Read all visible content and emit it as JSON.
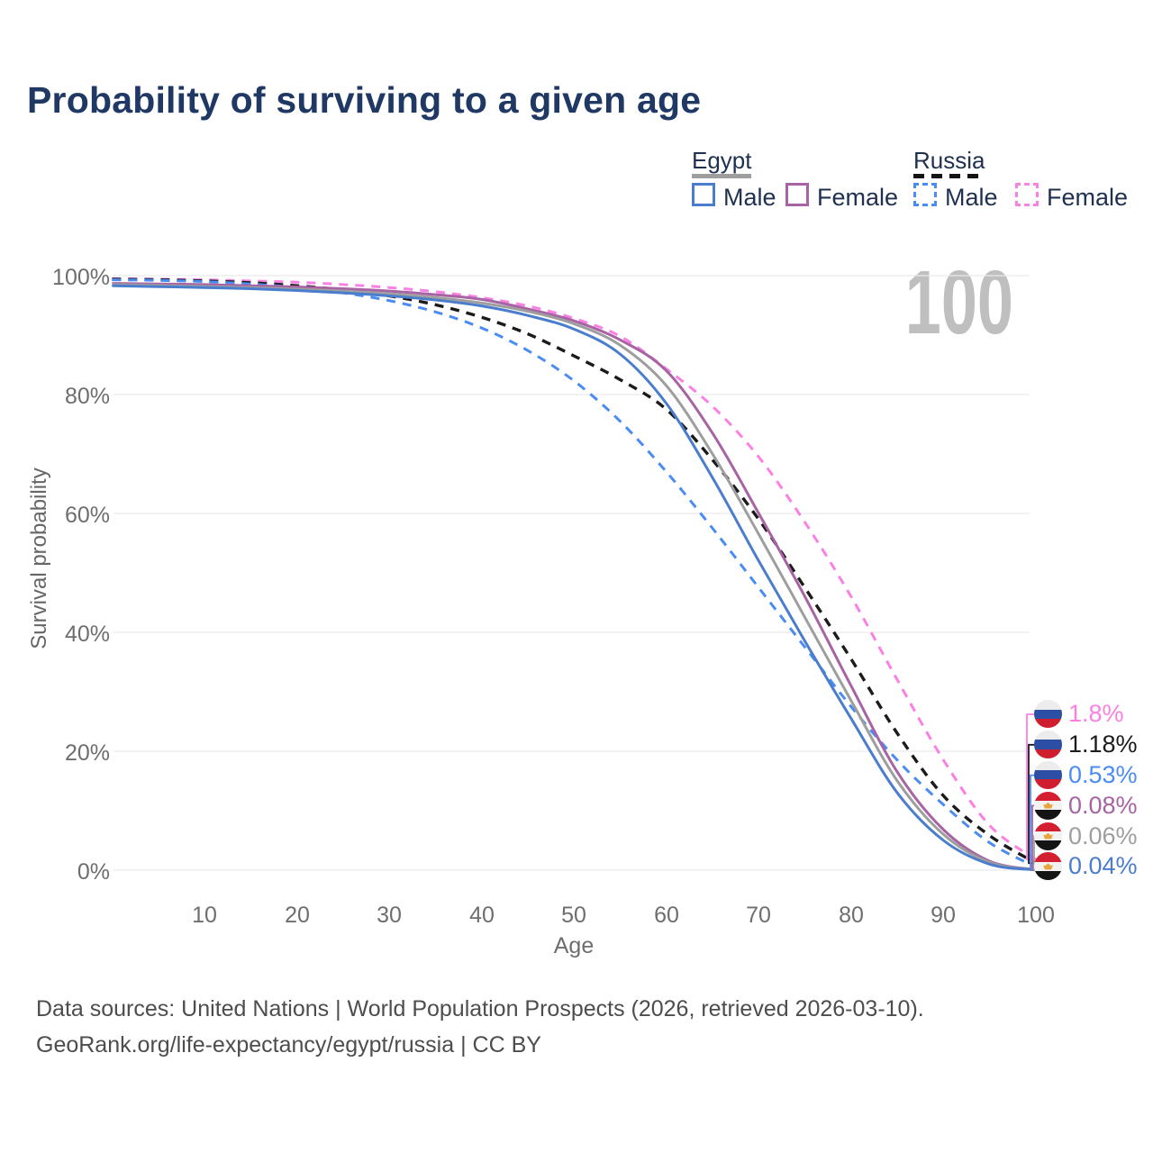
{
  "title": "Probability of surviving to a given age",
  "watermark": "100",
  "legend": {
    "egypt": {
      "label": "Egypt",
      "male": "Male",
      "female": "Female"
    },
    "russia": {
      "label": "Russia",
      "male": "Male",
      "female": "Female"
    }
  },
  "axes": {
    "x_label": "Age",
    "y_label": "Survival probability"
  },
  "footer": {
    "line1": "Data sources: United Nations | World Population Prospects (2026, retrieved 2026-03-10).",
    "line2": "GeoRank.org/life-expectancy/egypt/russia | CC BY"
  },
  "chart_data": {
    "type": "line",
    "title": "Probability of surviving to a given age",
    "xlabel": "Age",
    "ylabel": "Survival probability",
    "xlim": [
      0,
      100
    ],
    "ylim": [
      0,
      100
    ],
    "grid": true,
    "legend_position": "top-right",
    "x": [
      0,
      5,
      10,
      15,
      20,
      25,
      30,
      35,
      40,
      45,
      50,
      55,
      60,
      65,
      70,
      75,
      80,
      85,
      90,
      95,
      100
    ],
    "x_tick_labels": [
      "10",
      "20",
      "30",
      "40",
      "50",
      "60",
      "70",
      "80",
      "90",
      "100"
    ],
    "y_tick_labels": [
      "100%",
      "80%",
      "60%",
      "40%",
      "20%",
      "0%"
    ],
    "y_gridlines": [
      0,
      20,
      40,
      60,
      80,
      100
    ],
    "series": [
      {
        "id": "russia-female",
        "name": "Russia Female",
        "country": "Russia",
        "sex": "Female",
        "dashed": true,
        "color": "#fb80e4",
        "end_label": "1.8%",
        "values": [
          99.5,
          99.4,
          99.3,
          99.1,
          98.9,
          98.5,
          98.0,
          97.3,
          96.3,
          94.9,
          92.8,
          89.8,
          84.3,
          78.0,
          69.5,
          58.5,
          46.0,
          32.0,
          18.5,
          7.5,
          1.8
        ]
      },
      {
        "id": "russia-both",
        "name": "Russia Both sexes",
        "country": "Russia",
        "sex": "Both",
        "dashed": true,
        "color": "#1b1b1b",
        "end_label": "1.18%",
        "values": [
          99.4,
          99.3,
          99.1,
          98.8,
          98.3,
          97.6,
          96.6,
          95.1,
          93.0,
          90.2,
          86.5,
          82.5,
          77.5,
          69.0,
          59.0,
          47.5,
          35.5,
          23.0,
          12.5,
          5.8,
          1.18
        ]
      },
      {
        "id": "russia-male",
        "name": "Russia Male",
        "country": "Russia",
        "sex": "Male",
        "dashed": true,
        "color": "#4a8cf2",
        "end_label": "0.53%",
        "values": [
          99.3,
          99.2,
          99.0,
          98.6,
          98.0,
          97.1,
          95.8,
          93.9,
          91.2,
          87.4,
          82.3,
          75.5,
          67.0,
          57.5,
          47.5,
          37.5,
          27.5,
          18.5,
          11.0,
          4.6,
          0.53
        ]
      },
      {
        "id": "egypt-female",
        "name": "Egypt Female",
        "country": "Egypt",
        "sex": "Female",
        "dashed": false,
        "color": "#a863a4",
        "end_label": "0.08%",
        "values": [
          98.7,
          98.6,
          98.5,
          98.3,
          98.1,
          97.8,
          97.4,
          96.8,
          96.0,
          94.4,
          92.4,
          89.2,
          84.0,
          73.5,
          60.0,
          46.0,
          31.0,
          16.5,
          6.8,
          1.5,
          0.08
        ]
      },
      {
        "id": "egypt-both",
        "name": "Egypt Both sexes",
        "country": "Egypt",
        "sex": "Both",
        "dashed": false,
        "color": "#9e9e9e",
        "end_label": "0.06%",
        "values": [
          98.5,
          98.35,
          98.2,
          98.0,
          97.75,
          97.4,
          96.95,
          96.3,
          95.4,
          94.0,
          91.9,
          88.3,
          81.5,
          70.0,
          56.5,
          42.5,
          28.5,
          15.0,
          6.0,
          1.3,
          0.06
        ]
      },
      {
        "id": "egypt-male",
        "name": "Egypt Male",
        "country": "Egypt",
        "sex": "Male",
        "dashed": false,
        "color": "#4a7dcd",
        "end_label": "0.04%",
        "values": [
          98.3,
          98.15,
          98.0,
          97.8,
          97.5,
          97.1,
          96.6,
          95.9,
          94.9,
          93.3,
          91.0,
          86.8,
          78.5,
          66.0,
          52.0,
          38.5,
          25.5,
          13.0,
          5.0,
          1.0,
          0.04
        ]
      }
    ]
  }
}
